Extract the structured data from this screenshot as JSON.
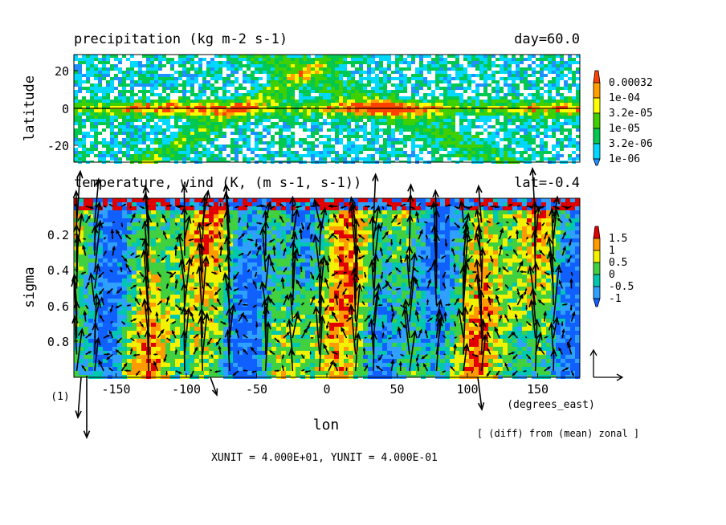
{
  "chart_data": [
    {
      "type": "heatmap",
      "title": "precipitation (kg m-2 s-1)",
      "time_label": "day=60.0",
      "ylabel": "latitude",
      "xlim": [
        -180,
        180
      ],
      "ylim": [
        -30,
        30
      ],
      "y_ticks": [
        20,
        0,
        -20
      ],
      "colorbar": {
        "levels": [
          "0.00032",
          "1e-04",
          "3.2e-05",
          "1e-05",
          "3.2e-06",
          "1e-06"
        ],
        "colors": [
          "#ff4000",
          "#ffa000",
          "#ffff00",
          "#40d000",
          "#00c850",
          "#00d8ff",
          "#1e90ff"
        ]
      },
      "note": "Intense precipitation band along the equator (0 lat) with scattered rain elsewhere"
    },
    {
      "type": "heatmap",
      "title": "temperature, wind (K, (m s-1, s-1))",
      "section_label": "lat=-0.4",
      "xlabel": "lon",
      "ylabel": "sigma",
      "xlim": [
        -180,
        180
      ],
      "ylim": [
        1.0,
        0.0
      ],
      "x_ticks": [
        -150,
        -100,
        -50,
        0,
        50,
        100,
        150
      ],
      "y_ticks": [
        0.2,
        0.4,
        0.6,
        0.8
      ],
      "x_unit_label": "(degrees_east)",
      "page_label": "(1)",
      "colorbar": {
        "levels": [
          "1.5",
          "1",
          "0.5",
          "0",
          "-0.5",
          "-1"
        ],
        "colors": [
          "#e00000",
          "#ff9a00",
          "#f2f200",
          "#40d040",
          "#00c8b0",
          "#30a0ff",
          "#1060ff"
        ]
      },
      "vector_scale": "XUNIT = 4.000E+01, YUNIT = 4.000E-01",
      "annotation": "[ (diff) from (mean) zonal ]"
    }
  ]
}
